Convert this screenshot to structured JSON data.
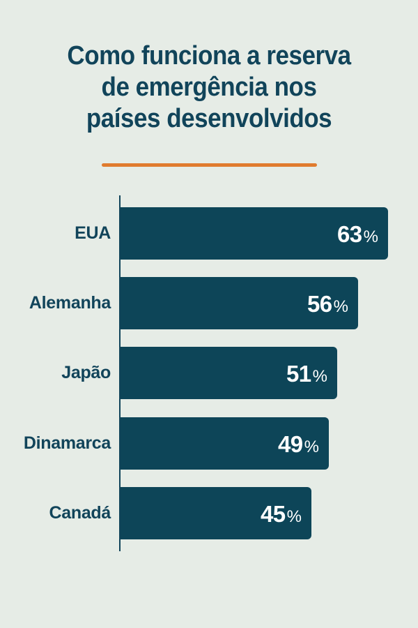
{
  "title": {
    "lines": [
      "Como funciona a reserva",
      "de emergência nos",
      "países desenvolvidos"
    ]
  },
  "colors": {
    "background": "#e6ece6",
    "bar": "#0d4558",
    "title": "#11445a",
    "accent_divider": "#e07b2e",
    "value_text": "#ffffff"
  },
  "chart_data": {
    "type": "bar",
    "orientation": "horizontal",
    "title": "Como funciona a reserva de emergência nos países desenvolvidos",
    "categories": [
      "EUA",
      "Alemanha",
      "Japão",
      "Dinamarca",
      "Canadá"
    ],
    "values": [
      63,
      56,
      51,
      49,
      45
    ],
    "unit": "%",
    "value_labels": [
      "63",
      "56",
      "51",
      "49",
      "45"
    ],
    "xlabel": "",
    "ylabel": "",
    "grid": false,
    "legend": null
  },
  "bars": [
    {
      "label": "EUA",
      "value": "63",
      "unit": "%"
    },
    {
      "label": "Alemanha",
      "value": "56",
      "unit": "%"
    },
    {
      "label": "Japão",
      "value": "51",
      "unit": "%"
    },
    {
      "label": "Dinamarca",
      "value": "49",
      "unit": "%"
    },
    {
      "label": "Canadá",
      "value": "45",
      "unit": "%"
    }
  ]
}
